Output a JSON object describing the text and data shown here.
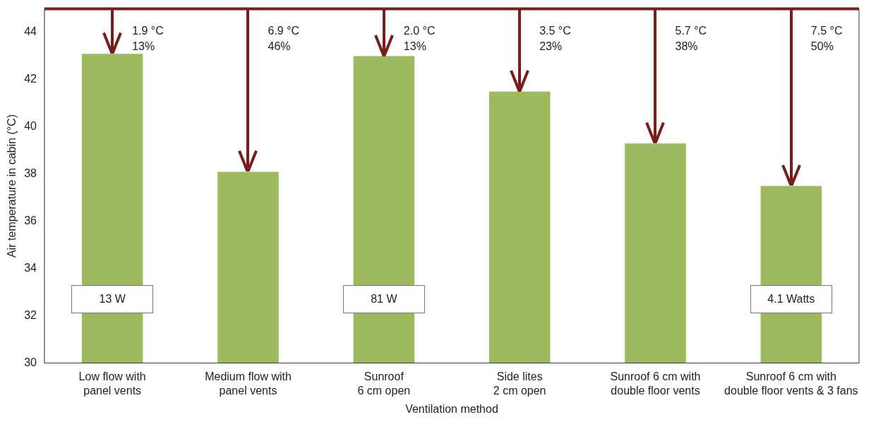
{
  "chart_data": {
    "type": "bar",
    "xlabel": "Ventilation method",
    "ylabel": "Air temperature in cabin (°C)",
    "categories": [
      "Low flow with\npanel vents",
      "Medium flow with\npanel vents",
      "Sunroof\n6 cm open",
      "Side lites\n2 cm open",
      "Sunroof 6 cm with\ndouble floor vents",
      "Sunroof 6 cm with\ndouble floor vents & 3 fans"
    ],
    "values": [
      43.1,
      38.1,
      43.0,
      41.5,
      39.3,
      37.5
    ],
    "color": "#9dbb5e",
    "ylim": [
      30,
      45
    ],
    "yticks": [
      30,
      32,
      34,
      36,
      38,
      40,
      42,
      44
    ],
    "grid": false,
    "ref_lines": [
      {
        "axis": "y",
        "value": 45,
        "color": "#7b1c1c"
      }
    ],
    "annotations": [
      {
        "text": "1.9 °C\n13%",
        "x": "Low flow with\npanel vents",
        "y": 45
      },
      {
        "text": "6.9 °C\n46%",
        "x": "Medium flow with\npanel vents",
        "y": 45
      },
      {
        "text": "2.0 °C\n13%",
        "x": "Sunroof\n6 cm open",
        "y": 45
      },
      {
        "text": "3.5 °C\n23%",
        "x": "Side lites\n2 cm open",
        "y": 45
      },
      {
        "text": "5.7 °C\n38%",
        "x": "Sunroof 6 cm with\ndouble floor vents",
        "y": 45
      },
      {
        "text": "7.5 °C\n50%",
        "x": "Sunroof 6 cm with\ndouble floor vents & 3 fans",
        "y": 45
      },
      "13 W",
      "81 W",
      "4.1 Watts"
    ]
  }
}
